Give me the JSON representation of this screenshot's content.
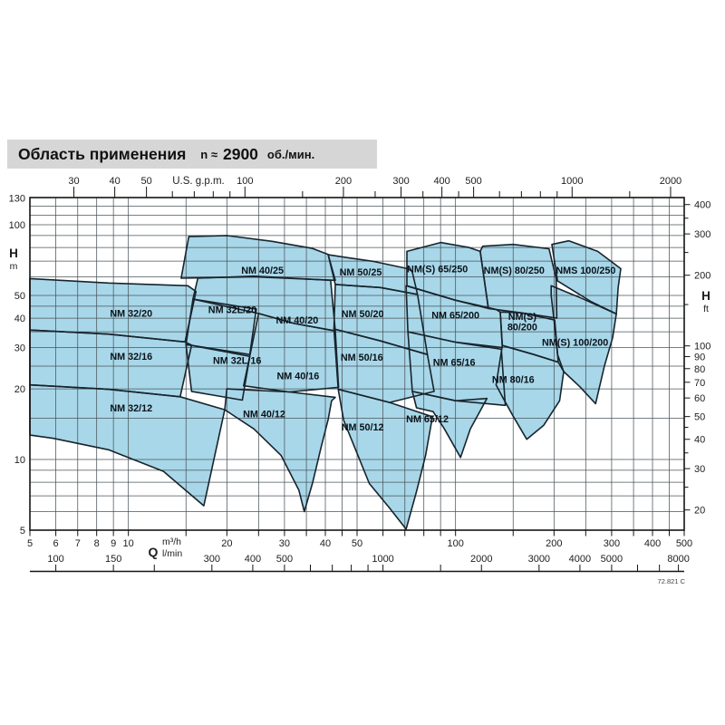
{
  "title": {
    "main": "Область применения",
    "n_label": "n ≈",
    "n_value": "2900",
    "unit": "об./мин."
  },
  "footnote": "72.821 C",
  "colors": {
    "region_fill": "#a8d7e9",
    "region_stroke": "#18242c",
    "grid": "#4a5358",
    "border": "#141414",
    "text": "#1d1d1d",
    "title_bg": "#d6d6d6"
  },
  "chart_data": {
    "type": "area",
    "title": "Область применения n ≈ 2900 об./мин.",
    "description": "Pump application-range selection chart, log-log axes: flow Q (m³/h, l/min, US gpm) vs head H (m, ft). Each shaded region is one pump model's working field.",
    "x_axis_bottom": {
      "label_q": "Q",
      "unit_m3h": "m³/h",
      "unit_lmin": "l/min",
      "range_m3h": [
        5,
        500
      ],
      "m3h_labels": [
        5,
        6,
        7,
        8,
        9,
        10,
        20,
        30,
        40,
        50,
        100,
        200,
        300,
        400,
        500
      ],
      "lmin_labels": [
        100,
        150,
        300,
        400,
        500,
        1000,
        2000,
        3000,
        4000,
        5000,
        8000
      ],
      "lmin_minor_ticks": [
        200,
        600,
        700,
        800,
        900,
        1500,
        6000,
        7000
      ]
    },
    "x_axis_top": {
      "label": "U.S. g.p.m.",
      "labels": [
        30,
        40,
        50,
        100,
        200,
        300,
        400,
        500,
        1000,
        2000
      ],
      "minor_ticks": [
        60,
        70,
        80,
        90,
        150,
        250,
        350,
        450,
        600,
        700,
        800,
        900,
        1500
      ]
    },
    "y_axis_left": {
      "label": "H",
      "unit": "m",
      "range": [
        5,
        130
      ],
      "labels": [
        130,
        100,
        50,
        40,
        30,
        20,
        10,
        5
      ]
    },
    "y_axis_right": {
      "label": "H",
      "unit": "ft",
      "labels": [
        400,
        300,
        200,
        100,
        90,
        80,
        70,
        60,
        50,
        40,
        30,
        20
      ],
      "minor_ticks": [
        350,
        250,
        150,
        45,
        35,
        25
      ]
    },
    "grid": {
      "h_lines_m": [
        6,
        7,
        8,
        9,
        10,
        15,
        20,
        25,
        30,
        35,
        40,
        45,
        50,
        60,
        70,
        80,
        90,
        100,
        110,
        120
      ],
      "v_lines_m3h": [
        6,
        7,
        8,
        9,
        10,
        15,
        20,
        25,
        30,
        35,
        40,
        45,
        50,
        60,
        70,
        80,
        90,
        100,
        150,
        200,
        250,
        300,
        350,
        400,
        450
      ]
    },
    "regions": [
      {
        "name": "NM 32/20",
        "label_lines": [
          "NM 32/20"
        ],
        "label_at": [
          10.2,
          42
        ],
        "points": [
          [
            5,
            59
          ],
          [
            8.7,
            56.5
          ],
          [
            15.2,
            55
          ],
          [
            16.1,
            52
          ],
          [
            14.9,
            31.7
          ],
          [
            8.7,
            34.2
          ],
          [
            5,
            35.6
          ]
        ]
      },
      {
        "name": "NM 32/16",
        "label_lines": [
          "NM 32/16"
        ],
        "label_at": [
          10.2,
          27.5
        ],
        "points": [
          [
            5,
            35.6
          ],
          [
            8.7,
            34.2
          ],
          [
            14.9,
            31.7
          ],
          [
            15.6,
            30.7
          ],
          [
            14.4,
            18.5
          ],
          [
            8.7,
            19.9
          ],
          [
            5,
            20.8
          ]
        ]
      },
      {
        "name": "NM 32/12",
        "label_lines": [
          "NM 32/12"
        ],
        "label_at": [
          10.2,
          16.6
        ],
        "points": [
          [
            5,
            20.8
          ],
          [
            8.7,
            19.9
          ],
          [
            14.4,
            18.5
          ],
          [
            19.7,
            16.3
          ],
          [
            17,
            6.35
          ],
          [
            12.8,
            8.9
          ],
          [
            8.7,
            11
          ],
          [
            5.9,
            12.3
          ],
          [
            5,
            12.7
          ]
        ]
      },
      {
        "name": "NM 32L/20",
        "label_lines": [
          "NM 32L/20"
        ],
        "label_at": [
          20.8,
          43.5
        ],
        "points": [
          [
            15.75,
            48.2
          ],
          [
            24.6,
            43.7
          ],
          [
            23.5,
            28
          ],
          [
            15,
            30.9
          ]
        ]
      },
      {
        "name": "NM 32L/16",
        "label_lines": [
          "NM 32L/16"
        ],
        "label_at": [
          21.5,
          26.5
        ],
        "points": [
          [
            15,
            30.9
          ],
          [
            23.5,
            27.5
          ],
          [
            22.3,
            17.9
          ],
          [
            15.6,
            19.5
          ]
        ]
      },
      {
        "name": "NM 40/25",
        "label_lines": [
          "NM 40/25"
        ],
        "label_at": [
          25.7,
          64
        ],
        "points": [
          [
            15.3,
            89
          ],
          [
            20,
            90
          ],
          [
            27.5,
            85
          ],
          [
            36.5,
            79.3
          ],
          [
            40.8,
            74.7
          ],
          [
            42.9,
            58
          ],
          [
            24.2,
            60
          ],
          [
            14.5,
            59.2
          ]
        ]
      },
      {
        "name": "NM 40/20",
        "label_lines": [
          "NM 40/20"
        ],
        "label_at": [
          32.8,
          39.4
        ],
        "points": [
          [
            16.3,
            59.2
          ],
          [
            24.2,
            60.4
          ],
          [
            41.5,
            58
          ],
          [
            42.9,
            35.3
          ],
          [
            32.1,
            38
          ],
          [
            25,
            41.9
          ],
          [
            15.75,
            48.2
          ]
        ]
      },
      {
        "name": "NM 40/16",
        "label_lines": [
          "NM 40/16"
        ],
        "label_at": [
          33,
          22.8
        ],
        "points": [
          [
            25,
            41.9
          ],
          [
            32.1,
            38
          ],
          [
            42.9,
            35.3
          ],
          [
            43.9,
            20.3
          ],
          [
            31,
            19.4
          ],
          [
            22.5,
            20.6
          ],
          [
            23.5,
            27.5
          ]
        ]
      },
      {
        "name": "NM 40/12",
        "label_lines": [
          "NM 40/12"
        ],
        "label_at": [
          26,
          15.7
        ],
        "points": [
          [
            20,
            20
          ],
          [
            31,
            19.4
          ],
          [
            42.9,
            18.4
          ],
          [
            41.8,
            17.8
          ],
          [
            40.8,
            14.8
          ],
          [
            38.9,
            11.4
          ],
          [
            36.6,
            8
          ],
          [
            34.5,
            6
          ],
          [
            33.2,
            7.4
          ],
          [
            29.3,
            10.4
          ],
          [
            24.2,
            13.5
          ],
          [
            19.7,
            16.3
          ]
        ]
      },
      {
        "name": "NM 50/25",
        "label_lines": [
          "NM 50/25"
        ],
        "label_at": [
          51.3,
          63
        ],
        "points": [
          [
            40.8,
            74.5
          ],
          [
            56.4,
            69.7
          ],
          [
            71.5,
            65
          ],
          [
            73.7,
            63.3
          ],
          [
            76.5,
            50.5
          ],
          [
            59,
            54
          ],
          [
            42.9,
            55.7
          ]
        ]
      },
      {
        "name": "NM 50/20",
        "label_lines": [
          "NM 50/20"
        ],
        "label_at": [
          52,
          41.9
        ],
        "points": [
          [
            42.9,
            55.7
          ],
          [
            59,
            54
          ],
          [
            76.5,
            50.5
          ],
          [
            82,
            28
          ],
          [
            59,
            32
          ],
          [
            42.5,
            36
          ]
        ]
      },
      {
        "name": "NM 50/16",
        "label_lines": [
          "NM 50/16"
        ],
        "label_at": [
          51.7,
          27.3
        ],
        "points": [
          [
            42.5,
            36
          ],
          [
            59,
            32
          ],
          [
            82,
            28
          ],
          [
            86,
            19.5
          ],
          [
            62.9,
            17.5
          ],
          [
            43.8,
            19.9
          ]
        ]
      },
      {
        "name": "NM 50/12",
        "label_lines": [
          "NM 50/12"
        ],
        "label_at": [
          52,
          13.8
        ],
        "points": [
          [
            43.8,
            19.9
          ],
          [
            62.9,
            17.5
          ],
          [
            85,
            15.2
          ],
          [
            81,
            10.4
          ],
          [
            76,
            7.3
          ],
          [
            70.6,
            5.05
          ],
          [
            62.9,
            6.2
          ],
          [
            54.5,
            7.9
          ],
          [
            45.5,
            14.7
          ]
        ]
      },
      {
        "name": "NM(S) 65/250",
        "label_lines": [
          "NM(S) 65/250"
        ],
        "label_at": [
          88,
          65
        ],
        "points": [
          [
            71,
            77
          ],
          [
            90,
            84
          ],
          [
            110,
            80
          ],
          [
            119,
            77
          ],
          [
            126,
            44
          ],
          [
            100,
            47.7
          ],
          [
            71,
            55
          ]
        ]
      },
      {
        "name": "NM 65/200",
        "label_lines": [
          "NM 65/200"
        ],
        "label_at": [
          100,
          41.3
        ],
        "points": [
          [
            70.6,
            55
          ],
          [
            100,
            47.7
          ],
          [
            133,
            43.6
          ],
          [
            137,
            42.5
          ],
          [
            139,
            30
          ],
          [
            100,
            31.6
          ],
          [
            71.5,
            35
          ]
        ]
      },
      {
        "name": "NM 65/16",
        "label_lines": [
          "NM 65/16"
        ],
        "label_at": [
          99,
          26
        ],
        "points": [
          [
            71.5,
            35
          ],
          [
            100,
            31.6
          ],
          [
            138,
            29.5
          ],
          [
            142,
            17
          ],
          [
            100,
            17.8
          ],
          [
            73.8,
            19.5
          ]
        ]
      },
      {
        "name": "NM 65/12",
        "label_lines": [
          "NM 65/12"
        ],
        "label_at": [
          82,
          14.9
        ],
        "points": [
          [
            73.8,
            19.5
          ],
          [
            100,
            17.8
          ],
          [
            124.7,
            18.2
          ],
          [
            111,
            13.5
          ],
          [
            103.6,
            10.2
          ],
          [
            92.5,
            13.5
          ],
          [
            85.4,
            16
          ],
          [
            76,
            16.6
          ]
        ]
      },
      {
        "name": "NM(S) 80/250",
        "label_lines": [
          "NM(S) 80/250"
        ],
        "label_at": [
          151,
          64
        ],
        "points": [
          [
            121,
            81
          ],
          [
            150,
            82.5
          ],
          [
            193,
            79
          ],
          [
            203,
            59
          ],
          [
            204,
            40
          ],
          [
            158,
            42.2
          ],
          [
            126,
            44
          ],
          [
            119,
            77
          ]
        ]
      },
      {
        "name": "NM(S) 80/200",
        "label_lines": [
          "NM(S)",
          "80/200"
        ],
        "label_at": [
          160,
          38
        ],
        "points": [
          [
            137,
            42.5
          ],
          [
            158,
            42.2
          ],
          [
            201,
            39.3
          ],
          [
            206,
            26
          ],
          [
            173.5,
            28
          ],
          [
            139,
            30.6
          ]
        ]
      },
      {
        "name": "NM 80/16",
        "label_lines": [
          "NM 80/16"
        ],
        "label_at": [
          150,
          22
        ],
        "points": [
          [
            139,
            30.6
          ],
          [
            173.5,
            28
          ],
          [
            206,
            26
          ],
          [
            214,
            23.7
          ],
          [
            208,
            17.8
          ],
          [
            186,
            14
          ],
          [
            165,
            12.2
          ],
          [
            150,
            15.3
          ],
          [
            140,
            18.2
          ],
          [
            133,
            20.8
          ]
        ]
      },
      {
        "name": "NMS 100/250",
        "label_lines": [
          "NMS 100/250"
        ],
        "label_at": [
          250,
          64
        ],
        "points": [
          [
            197,
            82.5
          ],
          [
            222,
            85.5
          ],
          [
            272,
            77
          ],
          [
            320,
            65
          ],
          [
            314,
            54
          ],
          [
            310,
            41.7
          ],
          [
            260,
            47
          ],
          [
            205,
            57.7
          ]
        ]
      },
      {
        "name": "NM(S) 100/200",
        "label_lines": [
          "NM(S) 100/200"
        ],
        "label_at": [
          232,
          31.7
        ],
        "points": [
          [
            196,
            55
          ],
          [
            240,
            49
          ],
          [
            310,
            41.7
          ],
          [
            302,
            33
          ],
          [
            285,
            25
          ],
          [
            268,
            17.3
          ],
          [
            240,
            20.4
          ],
          [
            214,
            23.7
          ],
          [
            205,
            28
          ],
          [
            200,
            39.3
          ],
          [
            196,
            50
          ]
        ]
      }
    ]
  }
}
